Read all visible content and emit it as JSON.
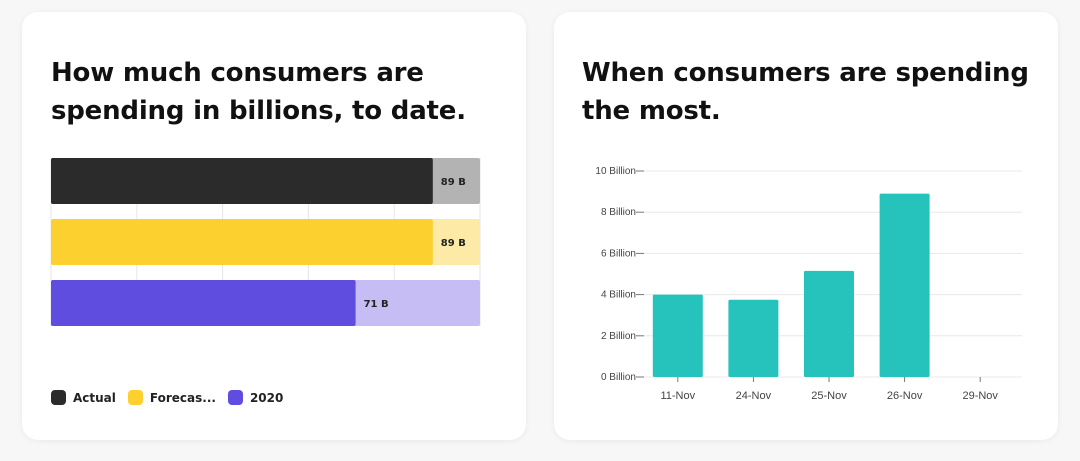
{
  "left_card": {
    "title": "How much consumers are spending in billions, to date."
  },
  "right_card": {
    "title": "When consumers are spending the most."
  },
  "chart_data": [
    {
      "type": "bar",
      "orientation": "horizontal",
      "title": "How much consumers are spending in billions, to date.",
      "series": [
        {
          "name": "Actual",
          "value": 89,
          "label": "89 B",
          "color": "#2b2b2b",
          "track_color": "#b3b3b3"
        },
        {
          "name": "Forecas...",
          "value": 89,
          "label": "89 B",
          "color": "#fcd02e",
          "track_color": "#fdeaa7"
        },
        {
          "name": "2020",
          "value": 71,
          "label": "71 B",
          "color": "#5f4de0",
          "track_color": "#c5bdf3"
        }
      ],
      "xlim": [
        0,
        100
      ],
      "grid": true,
      "legend_position": "bottom-left"
    },
    {
      "type": "bar",
      "title": "When consumers are spending the most.",
      "categories": [
        "11-Nov",
        "24-Nov",
        "25-Nov",
        "26-Nov",
        "29-Nov"
      ],
      "values": [
        4.0,
        3.75,
        5.15,
        8.9,
        0
      ],
      "ylim": [
        0,
        10
      ],
      "yticks": [
        0,
        2,
        4,
        6,
        8,
        10
      ],
      "ytick_labels": [
        "0 Billion",
        "2 Billion",
        "4 Billion",
        "6 Billion",
        "8 Billion",
        "10 Billion"
      ],
      "bar_color": "#26c3bd",
      "grid": true
    }
  ]
}
